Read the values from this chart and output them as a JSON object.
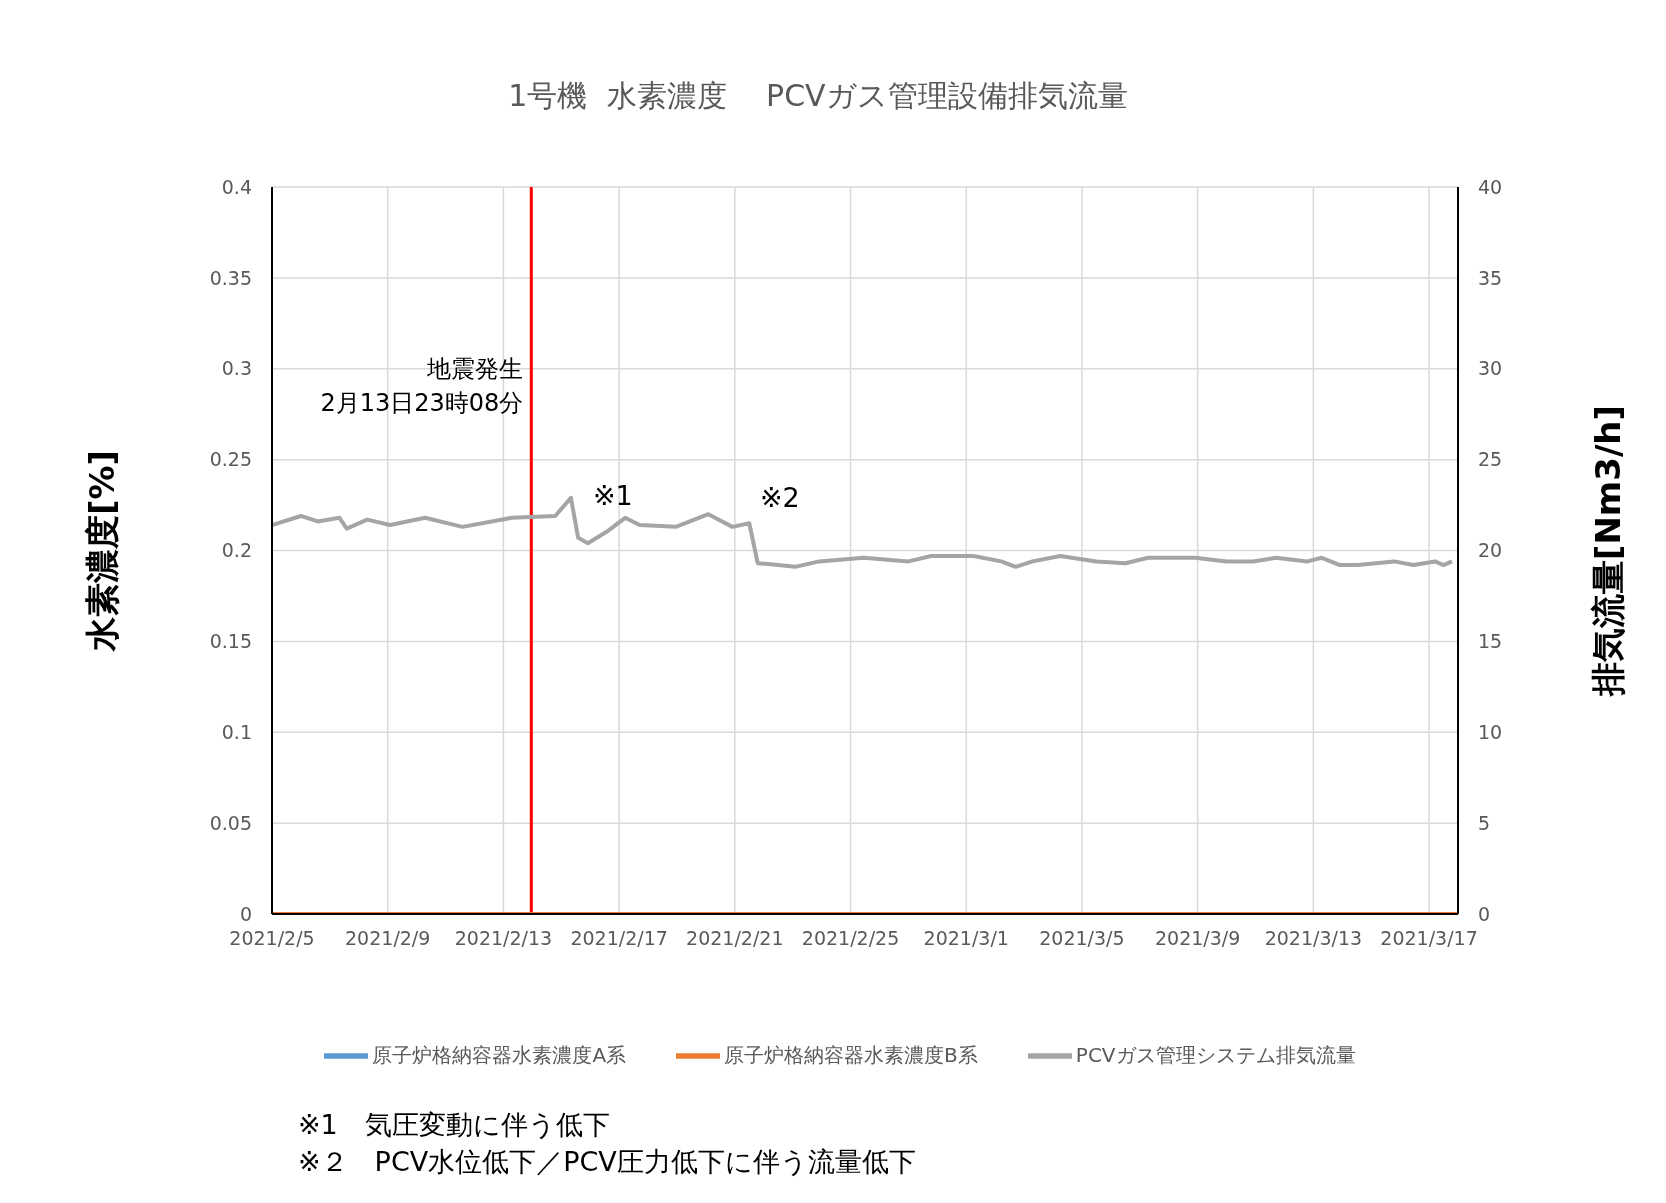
{
  "chart_data": {
    "type": "line",
    "title": "1号機  水素濃度　 PCVガス管理設備排気流量",
    "ylabel": "水素濃度[%]",
    "y2label": "排気流量[Nm3/h]",
    "xlim": [
      "2021-02-05",
      "2021-03-18"
    ],
    "xticks": [
      {
        "value": "2021-02-05",
        "label": "2021/2/5"
      },
      {
        "value": "2021-02-09",
        "label": "2021/2/9"
      },
      {
        "value": "2021-02-13",
        "label": "2021/2/13"
      },
      {
        "value": "2021-02-17",
        "label": "2021/2/17"
      },
      {
        "value": "2021-02-21",
        "label": "2021/2/21"
      },
      {
        "value": "2021-02-25",
        "label": "2021/2/25"
      },
      {
        "value": "2021-03-01",
        "label": "2021/3/1"
      },
      {
        "value": "2021-03-05",
        "label": "2021/3/5"
      },
      {
        "value": "2021-03-09",
        "label": "2021/3/9"
      },
      {
        "value": "2021-03-13",
        "label": "2021/3/13"
      },
      {
        "value": "2021-03-17",
        "label": "2021/3/17"
      }
    ],
    "ylim": [
      0,
      0.4
    ],
    "yticks": [
      0,
      0.05,
      0.1,
      0.15,
      0.2,
      0.25,
      0.3,
      0.35,
      0.4
    ],
    "y2lim": [
      0,
      40
    ],
    "y2ticks": [
      0,
      5,
      10,
      15,
      20,
      25,
      30,
      35,
      40
    ],
    "grid": true,
    "legend": "bottom",
    "marker": "none",
    "line_style": "solid",
    "series": [
      {
        "name": "原子炉格納容器水素濃度A系",
        "color": "#5b9bd5"
      },
      {
        "name": "原子炉格納容器水素濃度B系",
        "color": "#ed7d31",
        "x": [
          "2021-02-05",
          "2021-03-18"
        ],
        "values": [
          0,
          0
        ]
      },
      {
        "name": "PCVガス管理システム排気流量",
        "color": "#a5a5a5",
        "axis": "y2",
        "x": [
          "2021-02-05T00:00",
          "2021-02-06T00:00",
          "2021-02-06T14:00",
          "2021-02-07T08:00",
          "2021-02-07T14:00",
          "2021-02-08T07:00",
          "2021-02-09T02:00",
          "2021-02-10T07:00",
          "2021-02-11T14:00",
          "2021-02-13T07:00",
          "2021-02-14T19:00",
          "2021-02-15T08:00",
          "2021-02-15T14:00",
          "2021-02-15T22:00",
          "2021-02-16T13:00",
          "2021-02-17T05:00",
          "2021-02-17T17:00",
          "2021-02-18T23:00",
          "2021-02-20T02:00",
          "2021-02-20T22:00",
          "2021-02-21T12:00",
          "2021-02-21T19:00",
          "2021-02-22T12:00",
          "2021-02-23T02:00",
          "2021-02-23T22:00",
          "2021-02-25T11:00",
          "2021-02-27T00:00",
          "2021-02-27T19:00",
          "2021-03-01T06:00",
          "2021-03-02T05:00",
          "2021-03-02T17:00",
          "2021-03-03T07:00",
          "2021-03-04T06:00",
          "2021-03-05T12:00",
          "2021-03-06T12:00",
          "2021-03-07T07:00",
          "2021-03-08T22:00",
          "2021-03-10T00:00",
          "2021-03-10T22:00",
          "2021-03-11T17:00",
          "2021-03-12T19:00",
          "2021-03-13T07:00",
          "2021-03-13T22:00",
          "2021-03-14T13:00",
          "2021-03-15T19:00",
          "2021-03-16T11:00",
          "2021-03-17T05:00",
          "2021-03-17T12:00",
          "2021-03-17T19:00"
        ],
        "values": [
          21.4,
          21.9,
          21.6,
          21.8,
          21.2,
          21.7,
          21.4,
          21.8,
          21.3,
          21.8,
          21.9,
          22.9,
          20.7,
          20.4,
          21.0,
          21.8,
          21.4,
          21.3,
          22.0,
          21.3,
          21.5,
          19.3,
          19.2,
          19.1,
          19.4,
          19.6,
          19.4,
          19.7,
          19.7,
          19.4,
          19.1,
          19.4,
          19.7,
          19.4,
          19.3,
          19.6,
          19.6,
          19.4,
          19.4,
          19.6,
          19.4,
          19.6,
          19.2,
          19.2,
          19.4,
          19.2,
          19.4,
          19.2,
          19.4
        ]
      }
    ],
    "ref_lines": [
      {
        "axis": "x",
        "value": "2021-02-13T23:08",
        "label": "地震発生\n2月13日23時08分",
        "color": "#ff0000"
      }
    ],
    "annotations": [
      "※1",
      "※2",
      "※1　気圧変動に伴う低下",
      "※２　PCV水位低下／PCV圧力低下に伴う流量低下"
    ]
  }
}
